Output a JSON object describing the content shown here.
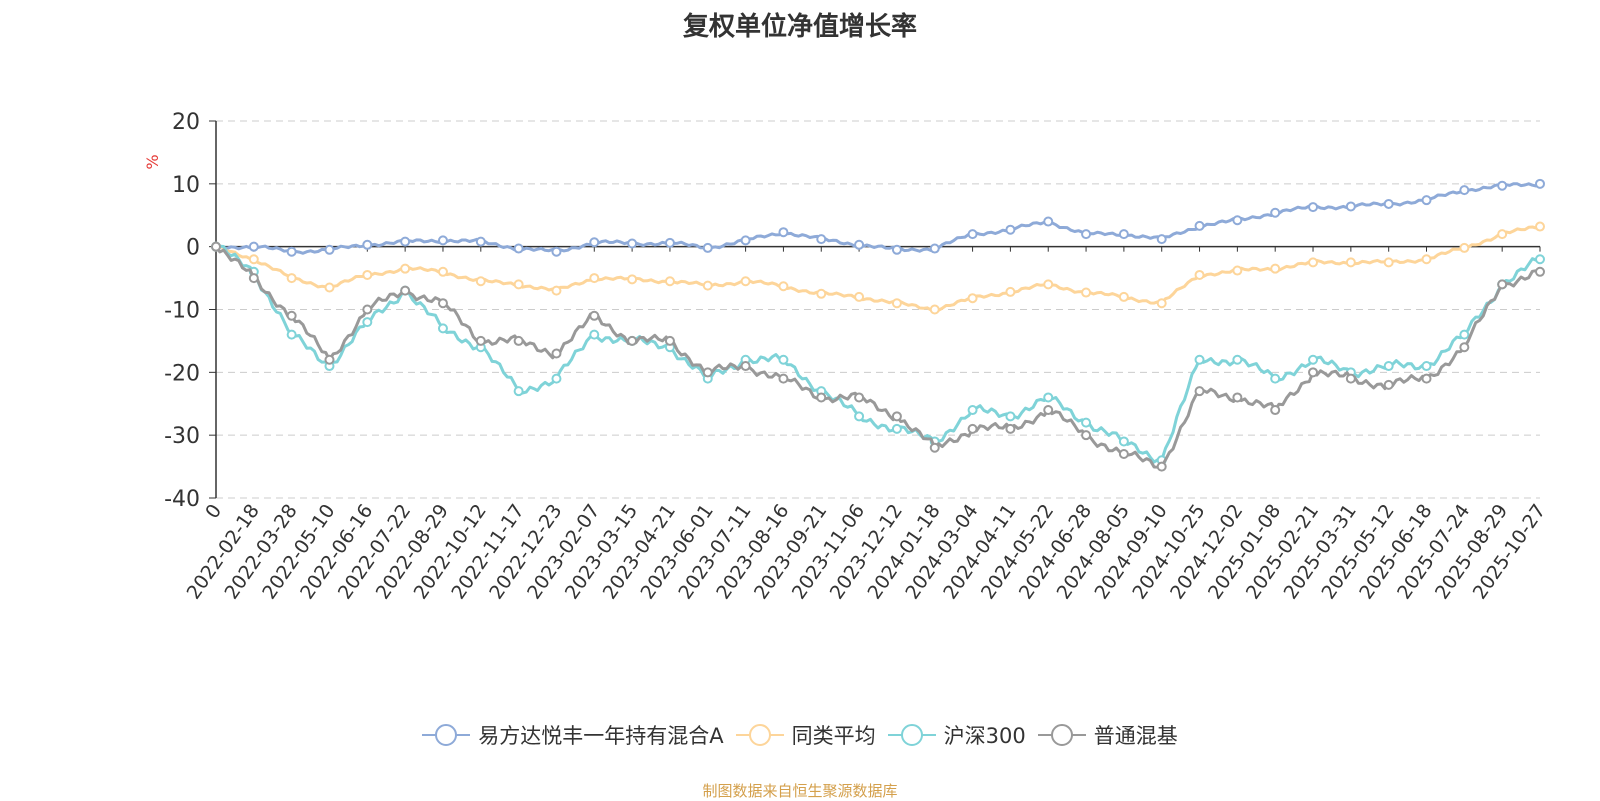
{
  "chart_data": {
    "type": "line",
    "title": "复权单位净值增长率",
    "ylabel": "%",
    "xlabel": "",
    "ylim": [
      -40,
      20
    ],
    "yticks": [
      20,
      10,
      0,
      -10,
      -20,
      -30,
      -40
    ],
    "grid": true,
    "legend_position": "bottom",
    "categories": [
      "0",
      "2022-02-18",
      "2022-03-28",
      "2022-05-10",
      "2022-06-16",
      "2022-07-22",
      "2022-08-29",
      "2022-10-12",
      "2022-11-17",
      "2022-12-23",
      "2023-02-07",
      "2023-03-15",
      "2023-04-21",
      "2023-06-01",
      "2023-07-11",
      "2023-08-16",
      "2023-09-21",
      "2023-11-06",
      "2023-12-12",
      "2024-01-18",
      "2024-03-04",
      "2024-04-11",
      "2024-05-22",
      "2024-06-28",
      "2024-08-05",
      "2024-09-10",
      "2024-10-25",
      "2024-12-02",
      "2025-01-08",
      "2025-02-21",
      "2025-03-31",
      "2025-05-12",
      "2025-06-18",
      "2025-07-24",
      "2025-08-29",
      "2025-10-27"
    ],
    "series": [
      {
        "name": "易方达悦丰一年持有混合A",
        "color": "#8eaad8",
        "values": [
          0,
          0,
          -0.8,
          -0.5,
          0.3,
          0.8,
          1,
          0.8,
          -0.3,
          -0.8,
          0.7,
          0.5,
          0.6,
          -0.2,
          1,
          2.3,
          1.2,
          0.3,
          -0.5,
          -0.3,
          2,
          2.7,
          4,
          2,
          2,
          1.2,
          3.3,
          4.2,
          5.4,
          6.3,
          6.4,
          6.8,
          7.4,
          9,
          9.7,
          10
        ]
      },
      {
        "name": "同类平均",
        "color": "#fdd59a",
        "values": [
          0,
          -2,
          -5,
          -6.5,
          -4.5,
          -3.5,
          -4,
          -5.5,
          -6,
          -7,
          -5,
          -5.2,
          -5.5,
          -6.2,
          -5.5,
          -6.3,
          -7.5,
          -8,
          -9,
          -10,
          -8.2,
          -7.2,
          -6,
          -7.3,
          -8,
          -9,
          -4.5,
          -3.8,
          -3.5,
          -2.5,
          -2.5,
          -2.5,
          -2,
          -0.2,
          2,
          3.2
        ]
      },
      {
        "name": "沪深300",
        "color": "#7fd3d8",
        "values": [
          0,
          -4,
          -14,
          -19,
          -12,
          -7,
          -13,
          -16,
          -23,
          -21,
          -14,
          -15,
          -16,
          -21,
          -18,
          -18,
          -23,
          -27,
          -29,
          -31,
          -26,
          -27,
          -24,
          -28,
          -31,
          -34,
          -18,
          -18,
          -21,
          -18,
          -20,
          -19,
          -19,
          -14,
          -6,
          -2
        ]
      },
      {
        "name": "普通混基",
        "color": "#999999",
        "values": [
          0,
          -5,
          -11,
          -18,
          -10,
          -7,
          -9,
          -15,
          -15,
          -17,
          -11,
          -15,
          -15,
          -20,
          -19,
          -21,
          -24,
          -24,
          -27,
          -32,
          -29,
          -29,
          -26,
          -30,
          -33,
          -35,
          -23,
          -24,
          -26,
          -20,
          -21,
          -22,
          -21,
          -16,
          -6,
          -4
        ]
      }
    ]
  },
  "source": {
    "text": "制图数据来自恒生聚源数据库",
    "color": "#d4a04c"
  }
}
